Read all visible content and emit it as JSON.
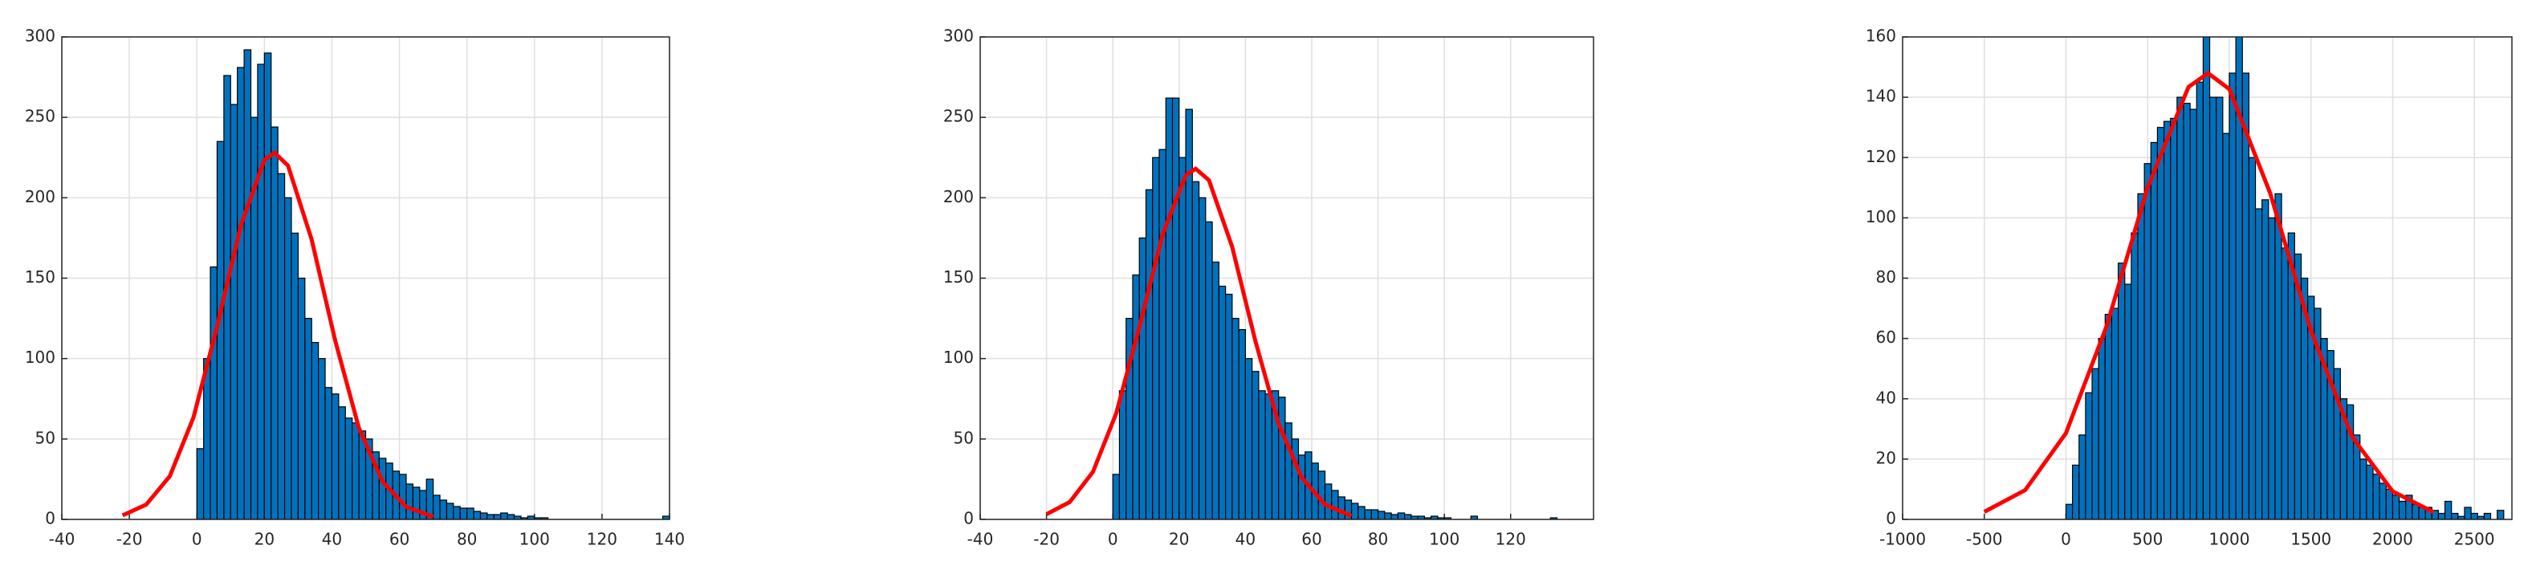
{
  "chart_data": [
    {
      "type": "histogram",
      "color": "#0072BD",
      "edgecolor": "#000000",
      "grid": true,
      "xlim": [
        -40,
        140
      ],
      "ylim": [
        0,
        300
      ],
      "xticks": [
        -40,
        -20,
        0,
        20,
        40,
        60,
        80,
        100,
        120,
        140
      ],
      "yticks": [
        0,
        50,
        100,
        150,
        200,
        250,
        300
      ],
      "bins": [
        0,
        2,
        4,
        6,
        8,
        10,
        12,
        14,
        16,
        18,
        20,
        22,
        24,
        26,
        28,
        30,
        32,
        34,
        36,
        38,
        40,
        42,
        44,
        46,
        48,
        50,
        52,
        54,
        56,
        58,
        60,
        62,
        64,
        66,
        68,
        70,
        72,
        74,
        76,
        78,
        80,
        82,
        84,
        86,
        88,
        90,
        92,
        94,
        96,
        98,
        100,
        102,
        104,
        106,
        108,
        110,
        112,
        114,
        116,
        118,
        120,
        122,
        124,
        126,
        128,
        130,
        132,
        134,
        136,
        138,
        140
      ],
      "counts": [
        44,
        100,
        157,
        235,
        276,
        258,
        281,
        292,
        250,
        283,
        290,
        244,
        215,
        200,
        178,
        150,
        125,
        110,
        100,
        82,
        78,
        70,
        63,
        60,
        55,
        50,
        42,
        38,
        35,
        30,
        28,
        22,
        20,
        18,
        25,
        15,
        12,
        10,
        8,
        7,
        7,
        5,
        4,
        3,
        3,
        4,
        3,
        2,
        1,
        2,
        1,
        1,
        0,
        0,
        0,
        0,
        0,
        0,
        0,
        0,
        0,
        0,
        0,
        0,
        0,
        0,
        0,
        0,
        0,
        2
      ],
      "curve": {
        "color": "#FF0000",
        "x": [
          -22,
          -15,
          -8,
          -1,
          6,
          13,
          20,
          23,
          27,
          34,
          41,
          48,
          55,
          62,
          70
        ],
        "y": [
          2.5,
          9.2,
          26.9,
          63.4,
          120,
          182.6,
          223.5,
          228,
          220,
          174,
          111,
          56.9,
          23.4,
          7.8,
          1.7
        ]
      }
    },
    {
      "type": "histogram",
      "color": "#0072BD",
      "edgecolor": "#000000",
      "grid": true,
      "xlim": [
        -40,
        145
      ],
      "ylim": [
        0,
        300
      ],
      "xticks": [
        -40,
        -20,
        0,
        20,
        40,
        60,
        80,
        100,
        120
      ],
      "yticks": [
        0,
        50,
        100,
        150,
        200,
        250,
        300
      ],
      "bins": [
        0,
        2,
        4,
        6,
        8,
        10,
        12,
        14,
        16,
        18,
        20,
        22,
        24,
        26,
        28,
        30,
        32,
        34,
        36,
        38,
        40,
        42,
        44,
        46,
        48,
        50,
        52,
        54,
        56,
        58,
        60,
        62,
        64,
        66,
        68,
        70,
        72,
        74,
        76,
        78,
        80,
        82,
        84,
        86,
        88,
        90,
        92,
        94,
        96,
        98,
        100,
        102,
        104,
        106,
        108,
        110,
        112,
        114,
        116,
        118,
        120,
        122,
        124,
        126,
        128,
        130,
        132,
        134,
        136,
        138,
        140
      ],
      "counts": [
        28,
        80,
        125,
        152,
        175,
        205,
        225,
        230,
        262,
        262,
        225,
        255,
        210,
        200,
        185,
        160,
        145,
        140,
        125,
        118,
        100,
        92,
        80,
        78,
        80,
        76,
        60,
        50,
        40,
        42,
        35,
        30,
        22,
        18,
        14,
        12,
        10,
        8,
        6,
        6,
        5,
        4,
        3,
        4,
        3,
        2,
        2,
        1,
        2,
        1,
        1,
        0,
        0,
        0,
        2,
        0,
        0,
        0,
        0,
        0,
        0,
        0,
        0,
        0,
        0,
        0,
        1,
        0,
        0,
        0
      ],
      "curve": {
        "color": "#FF0000",
        "x": [
          -20,
          -13,
          -6,
          1,
          8,
          15,
          22,
          25,
          29,
          36,
          43,
          50,
          57,
          64,
          72
        ],
        "y": [
          3.2,
          10.8,
          29.5,
          65.8,
          119.5,
          177,
          214,
          218,
          210.9,
          169.5,
          111,
          59.4,
          25.9,
          9.2,
          2.2
        ]
      }
    },
    {
      "type": "histogram",
      "color": "#0072BD",
      "edgecolor": "#000000",
      "grid": true,
      "xlim": [
        -1000,
        2730
      ],
      "ylim": [
        0,
        160
      ],
      "xticks": [
        -1000,
        -500,
        0,
        500,
        1000,
        1500,
        2000,
        2500
      ],
      "yticks": [
        0,
        20,
        40,
        60,
        80,
        100,
        120,
        140,
        160
      ],
      "bins": [
        0,
        40,
        80,
        120,
        160,
        200,
        240,
        280,
        320,
        360,
        400,
        440,
        480,
        520,
        560,
        600,
        640,
        680,
        720,
        760,
        800,
        840,
        880,
        920,
        960,
        1000,
        1040,
        1080,
        1120,
        1160,
        1200,
        1240,
        1280,
        1320,
        1360,
        1400,
        1440,
        1480,
        1520,
        1560,
        1600,
        1640,
        1680,
        1720,
        1760,
        1800,
        1840,
        1880,
        1920,
        1960,
        2000,
        2040,
        2080,
        2120,
        2160,
        2200,
        2240,
        2280,
        2320,
        2360,
        2400,
        2440,
        2480,
        2520,
        2560,
        2600,
        2640,
        2680,
        2720
      ],
      "counts": [
        5,
        18,
        28,
        42,
        50,
        60,
        68,
        70,
        85,
        78,
        95,
        108,
        118,
        125,
        130,
        132,
        133,
        140,
        138,
        136,
        145,
        162,
        140,
        140,
        128,
        148,
        162,
        148,
        120,
        103,
        106,
        100,
        108,
        90,
        95,
        88,
        80,
        74,
        70,
        60,
        56,
        50,
        40,
        38,
        28,
        20,
        18,
        15,
        12,
        10,
        8,
        6,
        8,
        5,
        4,
        4,
        3,
        2,
        6,
        2,
        1,
        4,
        2,
        1,
        2,
        0,
        3,
        0
      ],
      "curve": {
        "color": "#FF0000",
        "x": [
          -500,
          -250,
          0,
          250,
          500,
          750,
          870,
          1000,
          1250,
          1500,
          1750,
          2000,
          2250
        ],
        "y": [
          2.5,
          9.7,
          28.6,
          64.3,
          110,
          143.4,
          148,
          142.7,
          108.2,
          62.6,
          27.5,
          9.3,
          2.4
        ]
      }
    }
  ]
}
